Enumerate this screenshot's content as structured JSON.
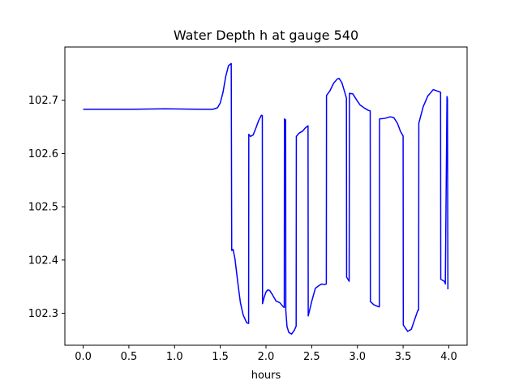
{
  "chart_data": {
    "type": "line",
    "title": "Water Depth h at gauge 540",
    "xlabel": "hours",
    "ylabel": "",
    "xlim": [
      -0.2,
      4.2
    ],
    "ylim": [
      102.24,
      102.8
    ],
    "x_ticks": [
      0.0,
      0.5,
      1.0,
      1.5,
      2.0,
      2.5,
      3.0,
      3.5,
      4.0
    ],
    "x_tick_labels": [
      "0.0",
      "0.5",
      "1.0",
      "1.5",
      "2.0",
      "2.5",
      "3.0",
      "3.5",
      "4.0"
    ],
    "y_ticks": [
      102.3,
      102.4,
      102.5,
      102.6,
      102.7
    ],
    "y_tick_labels": [
      "102.3",
      "102.4",
      "102.5",
      "102.6",
      "102.7"
    ],
    "grid": false,
    "series": [
      {
        "color": "#0000ff",
        "x": [
          0.0,
          0.5,
          0.9,
          1.3,
          1.42,
          1.47,
          1.5,
          1.53,
          1.56,
          1.59,
          1.62,
          1.625,
          1.64,
          1.66,
          1.69,
          1.72,
          1.75,
          1.79,
          1.81,
          1.812,
          1.83,
          1.86,
          1.89,
          1.92,
          1.95,
          1.96,
          1.962,
          1.98,
          2.0,
          2.02,
          2.04,
          2.07,
          2.11,
          2.15,
          2.19,
          2.2,
          2.202,
          2.215,
          2.217,
          2.23,
          2.25,
          2.28,
          2.31,
          2.33,
          2.332,
          2.36,
          2.4,
          2.43,
          2.46,
          2.462,
          2.5,
          2.54,
          2.58,
          2.61,
          2.64,
          2.66,
          2.662,
          2.7,
          2.74,
          2.78,
          2.8,
          2.83,
          2.86,
          2.88,
          2.882,
          2.91,
          2.913,
          2.95,
          2.99,
          3.03,
          3.08,
          3.12,
          3.14,
          3.142,
          3.18,
          3.22,
          3.24,
          3.242,
          3.3,
          3.36,
          3.4,
          3.44,
          3.47,
          3.5,
          3.502,
          3.55,
          3.59,
          3.62,
          3.66,
          3.67,
          3.672,
          3.72,
          3.77,
          3.83,
          3.88,
          3.91,
          3.912,
          3.95,
          3.96,
          3.962,
          3.98,
          3.985,
          3.99
        ],
        "y": [
          102.683,
          102.683,
          102.684,
          102.683,
          102.683,
          102.686,
          102.695,
          102.715,
          102.745,
          102.765,
          102.769,
          102.418,
          102.42,
          102.403,
          102.36,
          102.32,
          102.297,
          102.282,
          102.281,
          102.636,
          102.632,
          102.635,
          102.648,
          102.662,
          102.672,
          102.671,
          102.318,
          102.33,
          102.34,
          102.344,
          102.343,
          102.335,
          102.323,
          102.32,
          102.312,
          102.311,
          102.665,
          102.663,
          102.305,
          102.275,
          102.264,
          102.261,
          102.268,
          102.276,
          102.632,
          102.638,
          102.642,
          102.648,
          102.652,
          102.295,
          102.322,
          102.347,
          102.352,
          102.355,
          102.354,
          102.355,
          102.709,
          102.718,
          102.732,
          102.74,
          102.741,
          102.733,
          102.716,
          102.704,
          102.368,
          102.36,
          102.713,
          102.712,
          102.701,
          102.691,
          102.685,
          102.681,
          102.68,
          102.322,
          102.316,
          102.313,
          102.312,
          102.665,
          102.666,
          102.669,
          102.667,
          102.656,
          102.642,
          102.633,
          102.278,
          102.266,
          102.27,
          102.285,
          102.305,
          102.306,
          102.657,
          102.688,
          102.708,
          102.72,
          102.717,
          102.715,
          102.364,
          102.36,
          102.357,
          102.355,
          102.707,
          102.702,
          102.345
        ]
      }
    ]
  }
}
